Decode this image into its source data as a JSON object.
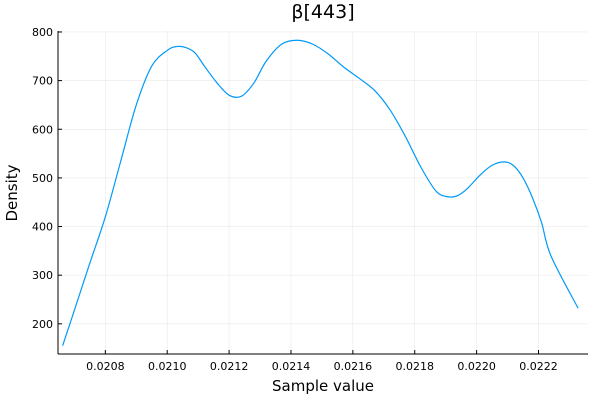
{
  "chart_data": {
    "type": "line",
    "title": "β[443]",
    "xlabel": "Sample value",
    "ylabel": "Density",
    "xlim": [
      0.020647,
      0.02236
    ],
    "ylim": [
      138,
      802
    ],
    "xticks": [
      0.0208,
      0.021,
      0.0212,
      0.0214,
      0.0216,
      0.0218,
      0.022,
      0.0222
    ],
    "xtick_labels": [
      "0.0208",
      "0.0210",
      "0.0212",
      "0.0214",
      "0.0216",
      "0.0218",
      "0.0220",
      "0.0222"
    ],
    "yticks": [
      200,
      300,
      400,
      500,
      600,
      700,
      800
    ],
    "ytick_labels": [
      "200",
      "300",
      "400",
      "500",
      "600",
      "700",
      "800"
    ],
    "grid": true,
    "legend": "none",
    "series": [
      {
        "color": "#009af9",
        "x": [
          0.020662,
          0.0207,
          0.02075,
          0.0208,
          0.02085,
          0.0209,
          0.02095,
          0.021,
          0.02103,
          0.02106,
          0.02109,
          0.02112,
          0.02116,
          0.0212,
          0.02124,
          0.02128,
          0.02132,
          0.02137,
          0.02142,
          0.02147,
          0.02152,
          0.02157,
          0.02162,
          0.02167,
          0.02172,
          0.02177,
          0.02182,
          0.02187,
          0.02191,
          0.02194,
          0.02197,
          0.02201,
          0.02205,
          0.02209,
          0.02212,
          0.02215,
          0.02218,
          0.02221,
          0.02224,
          0.022328
        ],
        "y": [
          155,
          228,
          325,
          420,
          535,
          650,
          730,
          762,
          770,
          768,
          757,
          730,
          696,
          670,
          668,
          695,
          740,
          775,
          783,
          775,
          755,
          728,
          705,
          680,
          640,
          585,
          522,
          472,
          461,
          464,
          478,
          505,
          526,
          533,
          525,
          500,
          460,
          408,
          340,
          232
        ]
      }
    ]
  }
}
